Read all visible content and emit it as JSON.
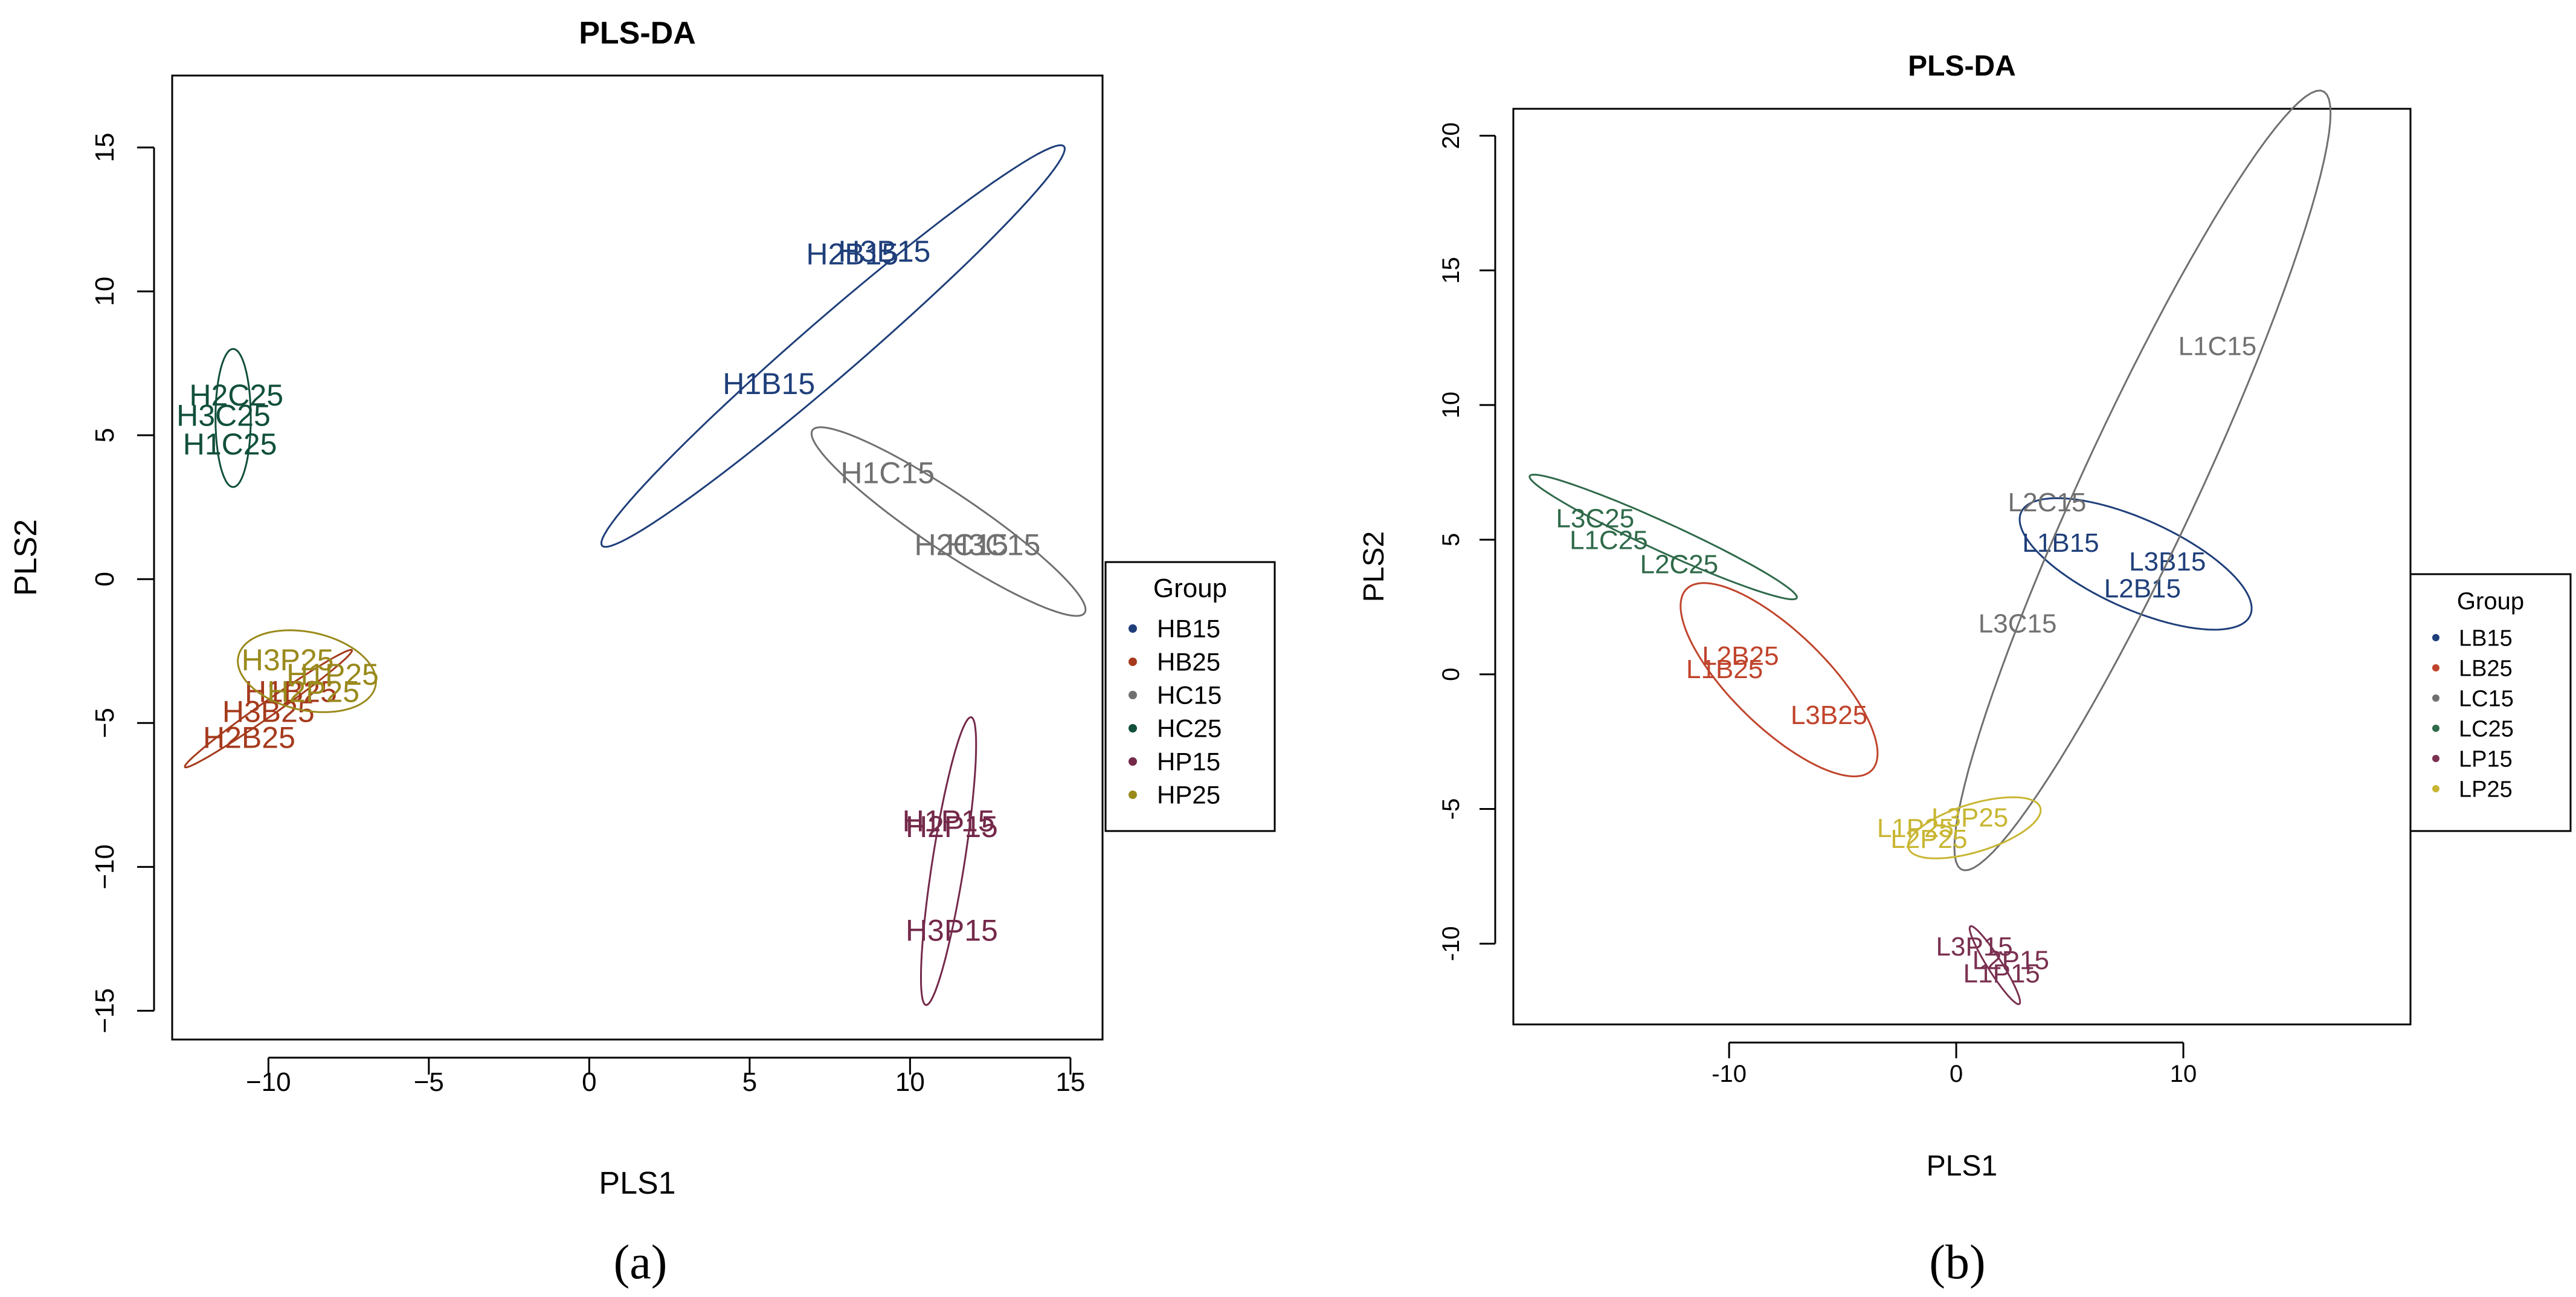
{
  "chart_data": [
    {
      "id": "a",
      "type": "scatter",
      "title": "PLS-DA",
      "xlabel": "PLS1",
      "ylabel": "PLS2",
      "xlim": [
        -13,
        16
      ],
      "ylim": [
        -16,
        17.5
      ],
      "xticks": [
        -10,
        -5,
        0,
        5,
        10,
        15
      ],
      "yticks": [
        -15,
        -10,
        -5,
        0,
        5,
        10,
        15
      ],
      "xtick_labels": [
        "−10",
        "−5",
        "0",
        "5",
        "10",
        "15"
      ],
      "ytick_labels": [
        "−15",
        "−10",
        "−5",
        "0",
        "5",
        "10",
        "15"
      ],
      "panel_label": "(a)",
      "legend": {
        "title": "Group",
        "position": "right",
        "items": [
          {
            "label": "HB15",
            "color": "#1f3f7a"
          },
          {
            "label": "HB25",
            "color": "#a53a1c"
          },
          {
            "label": "HC15",
            "color": "#707070"
          },
          {
            "label": "HC25",
            "color": "#11503a"
          },
          {
            "label": "HP15",
            "color": "#74294a"
          },
          {
            "label": "HP25",
            "color": "#9a8a1c"
          }
        ]
      },
      "series": [
        {
          "name": "HB15",
          "color": "#1f3f7a",
          "points": [
            {
              "label": "H2B15",
              "x": 8.2,
              "y": 11.3
            },
            {
              "label": "H3B15",
              "x": 9.2,
              "y": 11.4
            },
            {
              "label": "H1B15",
              "x": 5.6,
              "y": 6.8
            }
          ],
          "ellipse": {
            "cx": 7.6,
            "cy": 8.1,
            "rx": 10.0,
            "ry": 0.95,
            "angle": 44
          }
        },
        {
          "name": "HB25",
          "color": "#a53a1c",
          "points": [
            {
              "label": "H1B25",
              "x": -9.3,
              "y": -3.9
            },
            {
              "label": "H3B25",
              "x": -10.0,
              "y": -4.6
            },
            {
              "label": "H2B25",
              "x": -10.6,
              "y": -5.5
            }
          ],
          "ellipse": {
            "cx": -10.0,
            "cy": -4.5,
            "rx": 3.3,
            "ry": 0.25,
            "angle": 38
          }
        },
        {
          "name": "HC15",
          "color": "#707070",
          "points": [
            {
              "label": "H1C15",
              "x": 9.3,
              "y": 3.7
            },
            {
              "label": "H2C15",
              "x": 11.6,
              "y": 1.2
            },
            {
              "label": "H3C15",
              "x": 12.6,
              "y": 1.2
            }
          ],
          "ellipse": {
            "cx": 11.2,
            "cy": 2.0,
            "rx": 5.3,
            "ry": 0.95,
            "angle": -37
          }
        },
        {
          "name": "HC25",
          "color": "#11503a",
          "points": [
            {
              "label": "H2C25",
              "x": -11.0,
              "y": 6.4
            },
            {
              "label": "H3C25",
              "x": -11.4,
              "y": 5.7
            },
            {
              "label": "H1C25",
              "x": -11.2,
              "y": 4.7
            }
          ],
          "ellipse": {
            "cx": -11.1,
            "cy": 5.6,
            "rx": 2.4,
            "ry": 0.55,
            "angle": 90
          }
        },
        {
          "name": "HP15",
          "color": "#74294a",
          "points": [
            {
              "label": "H1P15",
              "x": 11.2,
              "y": -8.4
            },
            {
              "label": "H2P15",
              "x": 11.3,
              "y": -8.6
            },
            {
              "label": "H3P15",
              "x": 11.3,
              "y": -12.2
            }
          ],
          "ellipse": {
            "cx": 11.2,
            "cy": -9.8,
            "rx": 5.05,
            "ry": 0.5,
            "angle": 82
          }
        },
        {
          "name": "HP25",
          "color": "#9a8a1c",
          "points": [
            {
              "label": "H3P25",
              "x": -9.4,
              "y": -2.8
            },
            {
              "label": "H1P25",
              "x": -8.0,
              "y": -3.3
            },
            {
              "label": "H2P25",
              "x": -8.6,
              "y": -3.9
            }
          ],
          "ellipse": {
            "cx": -8.8,
            "cy": -3.2,
            "rx": 2.2,
            "ry": 1.35,
            "angle": -15
          }
        }
      ]
    },
    {
      "id": "b",
      "type": "scatter",
      "title": "PLS-DA",
      "xlabel": "PLS1",
      "ylabel": "PLS2",
      "xlim": [
        -19.5,
        20
      ],
      "ylim": [
        -13,
        21
      ],
      "xticks": [
        -10,
        0,
        10
      ],
      "yticks": [
        -10,
        -5,
        0,
        5,
        10,
        15,
        20
      ],
      "xtick_labels": [
        "-10",
        "0",
        "10"
      ],
      "ytick_labels": [
        "-10",
        "-5",
        "0",
        "5",
        "10",
        "15",
        "20"
      ],
      "panel_label": "(b)",
      "legend": {
        "title": "Group",
        "position": "right",
        "items": [
          {
            "label": "LB15",
            "color": "#1f3f7a"
          },
          {
            "label": "LB25",
            "color": "#c0442c"
          },
          {
            "label": "LC15",
            "color": "#707070"
          },
          {
            "label": "LC25",
            "color": "#2f6a4a"
          },
          {
            "label": "LP15",
            "color": "#7a3050"
          },
          {
            "label": "LP25",
            "color": "#c8b632"
          }
        ]
      },
      "series": [
        {
          "name": "LB15",
          "color": "#1f3f7a",
          "points": [
            {
              "label": "L1B15",
              "x": 4.6,
              "y": 4.9
            },
            {
              "label": "L3B15",
              "x": 9.3,
              "y": 4.2
            },
            {
              "label": "L2B15",
              "x": 8.2,
              "y": 3.2
            }
          ],
          "ellipse": {
            "cx": 7.9,
            "cy": 4.1,
            "rx": 5.4,
            "ry": 1.7,
            "angle": -20
          }
        },
        {
          "name": "LB25",
          "color": "#c0442c",
          "points": [
            {
              "label": "L2B25",
              "x": -9.5,
              "y": 0.7
            },
            {
              "label": "L1B25",
              "x": -10.2,
              "y": 0.2
            },
            {
              "label": "L3B25",
              "x": -5.6,
              "y": -1.5
            }
          ],
          "ellipse": {
            "cx": -7.8,
            "cy": -0.2,
            "rx": 5.3,
            "ry": 1.9,
            "angle": -38
          }
        },
        {
          "name": "LC15",
          "color": "#707070",
          "points": [
            {
              "label": "L1C15",
              "x": 11.5,
              "y": 12.2
            },
            {
              "label": "L2C15",
              "x": 4.0,
              "y": 6.4
            },
            {
              "label": "L3C15",
              "x": 2.7,
              "y": 1.9
            }
          ],
          "ellipse": {
            "cx": 8.2,
            "cy": 7.2,
            "rx": 16.5,
            "ry": 2.45,
            "angle": 61
          }
        },
        {
          "name": "LC25",
          "color": "#2f6a4a",
          "points": [
            {
              "label": "L3C25",
              "x": -15.9,
              "y": 5.8
            },
            {
              "label": "L1C25",
              "x": -15.3,
              "y": 5.0
            },
            {
              "label": "L2C25",
              "x": -12.2,
              "y": 4.1
            }
          ],
          "ellipse": {
            "cx": -12.9,
            "cy": 5.1,
            "rx": 6.3,
            "ry": 0.55,
            "angle": -21
          }
        },
        {
          "name": "LP15",
          "color": "#7a3050",
          "points": [
            {
              "label": "L3P15",
              "x": 0.8,
              "y": -10.1
            },
            {
              "label": "L2P15",
              "x": 2.4,
              "y": -10.6
            },
            {
              "label": "L1P15",
              "x": 2.0,
              "y": -11.1
            }
          ],
          "ellipse": {
            "cx": 1.7,
            "cy": -10.8,
            "rx": 1.8,
            "ry": 0.3,
            "angle": -53
          }
        },
        {
          "name": "LP25",
          "color": "#c8b632",
          "points": [
            {
              "label": "L1P25",
              "x": -1.8,
              "y": -5.7
            },
            {
              "label": "L3P25",
              "x": 0.6,
              "y": -5.3
            },
            {
              "label": "L2P25",
              "x": -1.2,
              "y": -6.1
            }
          ],
          "ellipse": {
            "cx": 0.8,
            "cy": -5.7,
            "rx": 3.0,
            "ry": 0.9,
            "angle": 14
          }
        }
      ]
    }
  ]
}
